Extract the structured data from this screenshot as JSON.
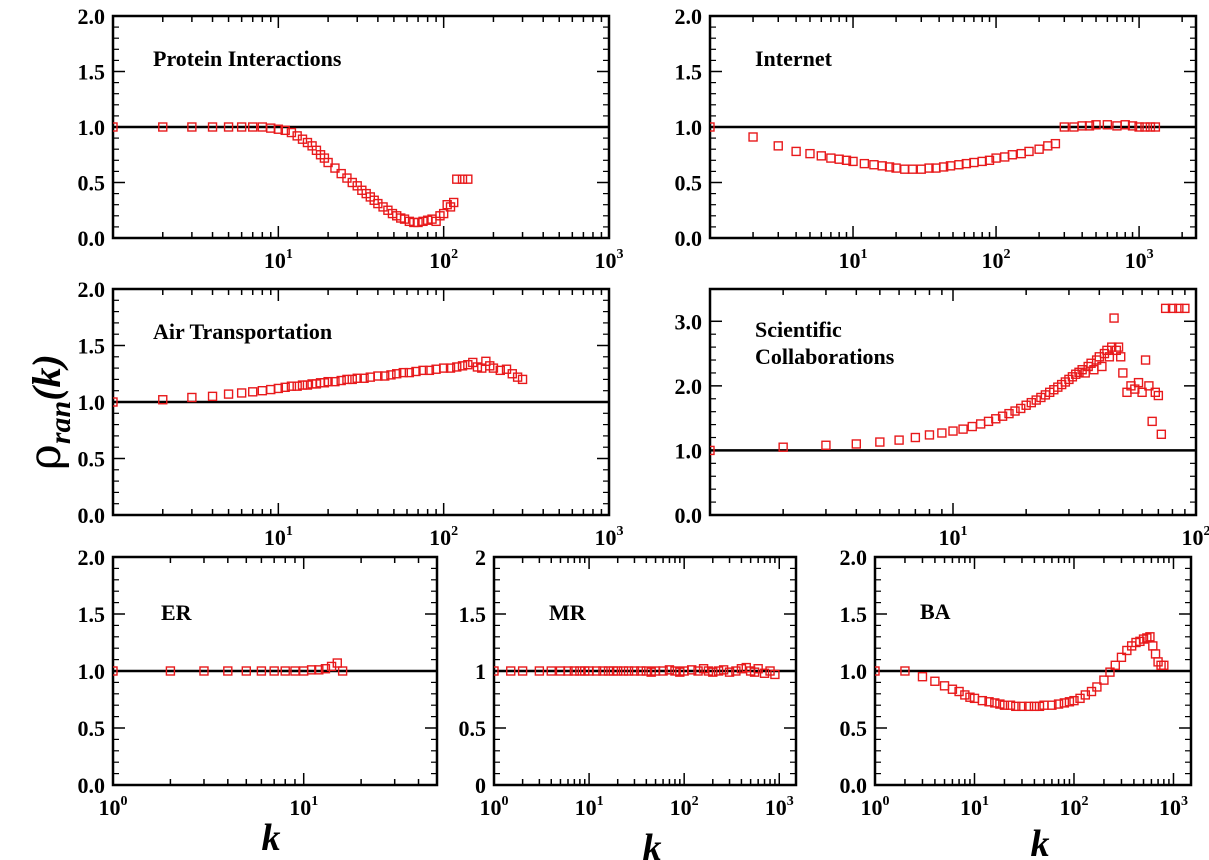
{
  "figure": {
    "ylabel_main": "ρ",
    "ylabel_sub": "ran",
    "ylabel_arg": "(k)",
    "xlabel": "k"
  },
  "colors": {
    "marker": "#e8191b",
    "axis": "#000000",
    "reference": "#000000"
  },
  "chart_data": [
    {
      "type": "scatter",
      "name": "protein",
      "title_lines": [
        "Protein Interactions"
      ],
      "xscale": "log",
      "xlim": [
        1,
        1000
      ],
      "ylim": [
        0,
        2
      ],
      "xticks": [
        {
          "v": 10,
          "b": "10",
          "e": "1"
        },
        {
          "v": 100,
          "b": "10",
          "e": "2"
        },
        {
          "v": 1000,
          "b": "10",
          "e": "3"
        }
      ],
      "yticks": [
        {
          "v": 0,
          "t": "0.0"
        },
        {
          "v": 0.5,
          "t": "0.5"
        },
        {
          "v": 1,
          "t": "1.0"
        },
        {
          "v": 1.5,
          "t": "1.5"
        },
        {
          "v": 2,
          "t": "2.0"
        }
      ],
      "reference_y": 1.0,
      "x": [
        1,
        2,
        3,
        4,
        5,
        6,
        7,
        8,
        9,
        10,
        11,
        12,
        13,
        14,
        15,
        16,
        17,
        18,
        19,
        20,
        22,
        24,
        26,
        28,
        30,
        32,
        34,
        36,
        38,
        40,
        43,
        46,
        49,
        52,
        55,
        58,
        62,
        66,
        70,
        75,
        80,
        85,
        90,
        95,
        100,
        105,
        110,
        115,
        120,
        130,
        140
      ],
      "y": [
        1.0,
        1.0,
        1.0,
        1.0,
        1.0,
        1.0,
        1.0,
        1.0,
        0.99,
        0.98,
        0.97,
        0.95,
        0.92,
        0.89,
        0.86,
        0.83,
        0.79,
        0.75,
        0.72,
        0.68,
        0.63,
        0.58,
        0.54,
        0.5,
        0.47,
        0.43,
        0.4,
        0.37,
        0.34,
        0.31,
        0.28,
        0.25,
        0.22,
        0.2,
        0.18,
        0.17,
        0.15,
        0.14,
        0.14,
        0.15,
        0.16,
        0.17,
        0.15,
        0.2,
        0.22,
        0.3,
        0.28,
        0.32,
        0.53,
        0.53,
        0.53
      ]
    },
    {
      "type": "scatter",
      "name": "internet",
      "title_lines": [
        "Internet"
      ],
      "xscale": "log",
      "xlim": [
        1,
        2500
      ],
      "ylim": [
        0,
        2
      ],
      "xticks": [
        {
          "v": 10,
          "b": "10",
          "e": "1"
        },
        {
          "v": 100,
          "b": "10",
          "e": "2"
        },
        {
          "v": 1000,
          "b": "10",
          "e": "3"
        }
      ],
      "yticks": [
        {
          "v": 0,
          "t": "0.0"
        },
        {
          "v": 0.5,
          "t": "0.5"
        },
        {
          "v": 1,
          "t": "1.0"
        },
        {
          "v": 1.5,
          "t": "1.5"
        },
        {
          "v": 2,
          "t": "2.0"
        }
      ],
      "reference_y": 1.0,
      "x": [
        1,
        2,
        3,
        4,
        5,
        6,
        7,
        8,
        9,
        10,
        12,
        14,
        16,
        18,
        20,
        23,
        26,
        30,
        34,
        38,
        43,
        48,
        55,
        62,
        70,
        80,
        90,
        100,
        115,
        130,
        150,
        170,
        200,
        230,
        260,
        300,
        350,
        400,
        450,
        500,
        600,
        700,
        800,
        900,
        1000,
        1100,
        1200,
        1300
      ],
      "y": [
        1.0,
        0.91,
        0.83,
        0.78,
        0.76,
        0.74,
        0.72,
        0.71,
        0.7,
        0.69,
        0.67,
        0.66,
        0.65,
        0.64,
        0.63,
        0.62,
        0.62,
        0.62,
        0.63,
        0.63,
        0.64,
        0.65,
        0.66,
        0.67,
        0.68,
        0.69,
        0.7,
        0.72,
        0.73,
        0.75,
        0.76,
        0.78,
        0.8,
        0.83,
        0.85,
        1.0,
        1.0,
        1.01,
        1.01,
        1.02,
        1.02,
        1.01,
        1.02,
        1.01,
        1.0,
        1.0,
        1.0,
        1.0
      ]
    },
    {
      "type": "scatter",
      "name": "air",
      "title_lines": [
        "Air Transportation"
      ],
      "xscale": "log",
      "xlim": [
        1,
        1000
      ],
      "ylim": [
        0,
        2
      ],
      "xticks": [
        {
          "v": 10,
          "b": "10",
          "e": "1"
        },
        {
          "v": 100,
          "b": "10",
          "e": "2"
        },
        {
          "v": 1000,
          "b": "10",
          "e": "3"
        }
      ],
      "yticks": [
        {
          "v": 0,
          "t": "0.0"
        },
        {
          "v": 0.5,
          "t": "0.5"
        },
        {
          "v": 1,
          "t": "1.0"
        },
        {
          "v": 1.5,
          "t": "1.5"
        },
        {
          "v": 2,
          "t": "2.0"
        }
      ],
      "reference_y": 1.0,
      "x": [
        1,
        2,
        3,
        4,
        5,
        6,
        7,
        8,
        9,
        10,
        11,
        12,
        13,
        14,
        15,
        16,
        17,
        18,
        19,
        20,
        22,
        24,
        26,
        28,
        30,
        33,
        36,
        40,
        44,
        48,
        52,
        57,
        62,
        68,
        75,
        82,
        90,
        100,
        110,
        120,
        130,
        140,
        150,
        160,
        170,
        180,
        190,
        200,
        220,
        240,
        260,
        280,
        300
      ],
      "y": [
        1.0,
        1.02,
        1.04,
        1.05,
        1.07,
        1.08,
        1.09,
        1.1,
        1.11,
        1.12,
        1.13,
        1.14,
        1.14,
        1.15,
        1.15,
        1.16,
        1.16,
        1.17,
        1.17,
        1.18,
        1.18,
        1.19,
        1.2,
        1.2,
        1.21,
        1.21,
        1.22,
        1.23,
        1.23,
        1.24,
        1.25,
        1.26,
        1.26,
        1.27,
        1.28,
        1.28,
        1.29,
        1.3,
        1.3,
        1.31,
        1.32,
        1.33,
        1.35,
        1.31,
        1.3,
        1.36,
        1.32,
        1.3,
        1.28,
        1.29,
        1.25,
        1.22,
        1.2
      ]
    },
    {
      "type": "scatter",
      "name": "scientific",
      "title_lines": [
        "Scientific",
        "Collaborations"
      ],
      "xscale": "log",
      "xlim": [
        1,
        100
      ],
      "ylim": [
        0,
        3.5
      ],
      "xticks": [
        {
          "v": 10,
          "b": "10",
          "e": "1"
        },
        {
          "v": 100,
          "b": "10",
          "e": "2"
        }
      ],
      "yticks": [
        {
          "v": 0,
          "t": "0.0"
        },
        {
          "v": 1,
          "t": "1.0"
        },
        {
          "v": 2,
          "t": "2.0"
        },
        {
          "v": 3,
          "t": "3.0"
        }
      ],
      "reference_y": 1.0,
      "x": [
        1,
        2,
        3,
        4,
        5,
        6,
        7,
        8,
        9,
        10,
        11,
        12,
        13,
        14,
        15,
        16,
        17,
        18,
        19,
        20,
        21,
        22,
        23,
        24,
        25,
        26,
        27,
        28,
        29,
        30,
        31,
        32,
        33,
        34,
        35,
        36,
        37,
        38,
        39,
        40,
        41,
        42,
        43,
        44,
        45,
        46,
        47,
        48,
        49,
        50,
        52,
        54,
        56,
        58,
        60,
        62,
        64,
        66,
        68,
        70,
        72,
        75,
        80,
        85,
        90
      ],
      "y": [
        1.0,
        1.05,
        1.08,
        1.1,
        1.13,
        1.16,
        1.2,
        1.24,
        1.27,
        1.3,
        1.33,
        1.37,
        1.41,
        1.45,
        1.49,
        1.53,
        1.57,
        1.61,
        1.65,
        1.7,
        1.74,
        1.78,
        1.82,
        1.86,
        1.9,
        1.94,
        1.98,
        2.02,
        2.06,
        2.1,
        2.14,
        2.18,
        2.21,
        2.25,
        2.2,
        2.3,
        2.35,
        2.25,
        2.4,
        2.45,
        2.3,
        2.5,
        2.55,
        2.45,
        2.6,
        3.05,
        2.55,
        2.6,
        2.45,
        2.2,
        1.9,
        2.0,
        1.95,
        2.05,
        1.9,
        2.4,
        2.0,
        1.45,
        1.9,
        1.85,
        1.25,
        3.2,
        3.2,
        3.2,
        3.2
      ]
    },
    {
      "type": "scatter",
      "name": "er",
      "title_lines": [
        "ER"
      ],
      "xscale": "log",
      "xlim": [
        1,
        50
      ],
      "ylim": [
        0,
        2
      ],
      "xticks": [
        {
          "v": 1,
          "b": "10",
          "e": "0"
        },
        {
          "v": 10,
          "b": "10",
          "e": "1"
        }
      ],
      "yticks": [
        {
          "v": 0,
          "t": "0.0"
        },
        {
          "v": 0.5,
          "t": "0.5"
        },
        {
          "v": 1,
          "t": "1.0"
        },
        {
          "v": 1.5,
          "t": "1.5"
        },
        {
          "v": 2,
          "t": "2.0"
        }
      ],
      "reference_y": 1.0,
      "x": [
        1,
        2,
        3,
        4,
        5,
        6,
        7,
        8,
        9,
        10,
        11,
        12,
        13,
        14,
        15,
        16
      ],
      "y": [
        1.0,
        1.0,
        1.0,
        1.0,
        1.0,
        1.0,
        1.0,
        1.0,
        1.0,
        1.0,
        1.01,
        1.01,
        1.02,
        1.04,
        1.07,
        1.0
      ]
    },
    {
      "type": "scatter",
      "name": "mr",
      "title_lines": [
        "MR"
      ],
      "xscale": "log",
      "xlim": [
        1,
        1500
      ],
      "ylim": [
        0,
        2
      ],
      "xticks": [
        {
          "v": 1,
          "b": "10",
          "e": "0"
        },
        {
          "v": 10,
          "b": "10",
          "e": "1"
        },
        {
          "v": 100,
          "b": "10",
          "e": "2"
        },
        {
          "v": 1000,
          "b": "10",
          "e": "3"
        }
      ],
      "yticks": [
        {
          "v": 0,
          "t": "0"
        },
        {
          "v": 0.5,
          "t": "0.5"
        },
        {
          "v": 1,
          "t": "1"
        },
        {
          "v": 1.5,
          "t": "1.5"
        },
        {
          "v": 2,
          "t": "2"
        }
      ],
      "reference_y": 1.0,
      "x": [
        1,
        1.5,
        2,
        3,
        4,
        5,
        6,
        7,
        8,
        9,
        10,
        12,
        14,
        16,
        18,
        20,
        23,
        26,
        30,
        35,
        40,
        45,
        50,
        60,
        70,
        80,
        90,
        100,
        120,
        140,
        160,
        180,
        200,
        230,
        260,
        300,
        350,
        400,
        450,
        500,
        550,
        600,
        700,
        800,
        900
      ],
      "y": [
        1.0,
        1.0,
        1.0,
        1.0,
        1.0,
        1.0,
        1.0,
        1.0,
        1.0,
        1.0,
        1.0,
        1.0,
        1.0,
        1.0,
        1.0,
        1.0,
        1.0,
        1.0,
        1.0,
        1.0,
        1.0,
        0.99,
        1.0,
        1.0,
        1.01,
        1.0,
        0.99,
        1.0,
        1.01,
        1.0,
        1.02,
        1.0,
        0.99,
        1.0,
        1.01,
        0.99,
        1.0,
        1.02,
        1.03,
        1.0,
        0.99,
        1.02,
        0.98,
        1.0,
        0.97
      ]
    },
    {
      "type": "scatter",
      "name": "ba",
      "title_lines": [
        "BA"
      ],
      "xscale": "log",
      "xlim": [
        1,
        1500
      ],
      "ylim": [
        0,
        2
      ],
      "xticks": [
        {
          "v": 1,
          "b": "10",
          "e": "0"
        },
        {
          "v": 10,
          "b": "10",
          "e": "1"
        },
        {
          "v": 100,
          "b": "10",
          "e": "2"
        },
        {
          "v": 1000,
          "b": "10",
          "e": "3"
        }
      ],
      "yticks": [
        {
          "v": 0,
          "t": "0.0"
        },
        {
          "v": 0.5,
          "t": "0.5"
        },
        {
          "v": 1,
          "t": "1.0"
        },
        {
          "v": 1.5,
          "t": "1.5"
        },
        {
          "v": 2,
          "t": "2.0"
        }
      ],
      "reference_y": 1.0,
      "x": [
        1,
        2,
        3,
        4,
        5,
        6,
        7,
        8,
        9,
        10,
        12,
        14,
        16,
        18,
        20,
        23,
        26,
        30,
        35,
        40,
        45,
        50,
        60,
        70,
        80,
        90,
        100,
        115,
        130,
        150,
        170,
        200,
        230,
        260,
        300,
        340,
        380,
        420,
        460,
        500,
        540,
        580,
        620,
        660,
        700,
        750,
        800
      ],
      "y": [
        1.0,
        1.0,
        0.95,
        0.91,
        0.87,
        0.84,
        0.82,
        0.79,
        0.77,
        0.76,
        0.74,
        0.73,
        0.72,
        0.71,
        0.7,
        0.7,
        0.69,
        0.69,
        0.69,
        0.69,
        0.69,
        0.7,
        0.7,
        0.71,
        0.72,
        0.73,
        0.74,
        0.76,
        0.79,
        0.82,
        0.86,
        0.92,
        0.99,
        1.05,
        1.12,
        1.18,
        1.22,
        1.25,
        1.26,
        1.28,
        1.29,
        1.3,
        1.22,
        1.15,
        1.08,
        1.05,
        1.05
      ]
    }
  ]
}
